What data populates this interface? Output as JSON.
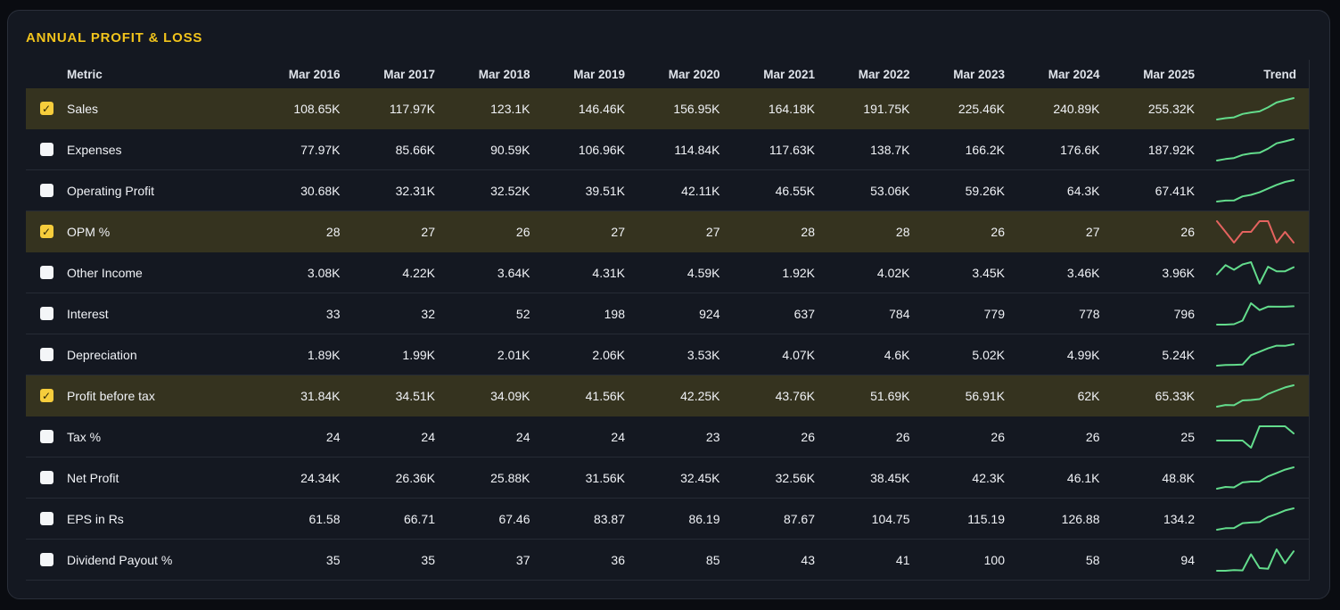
{
  "section": {
    "title": "ANNUAL PROFIT & LOSS"
  },
  "colors": {
    "accent_title": "#f2c41c",
    "row_highlight": "#35331f",
    "checkbox_checked": "#f6cd3c",
    "spark_green": "#63dc8c",
    "spark_red": "#e4635f"
  },
  "icons": {
    "checked_checkbox": "checkmark-icon",
    "trend_sparkline": "sparkline-chart-icon"
  },
  "table": {
    "metric_header": "Metric",
    "trend_header": "Trend",
    "year_headers": [
      "Mar 2016",
      "Mar 2017",
      "Mar 2018",
      "Mar 2019",
      "Mar 2020",
      "Mar 2021",
      "Mar 2022",
      "Mar 2023",
      "Mar 2024",
      "Mar 2025"
    ],
    "rows": [
      {
        "metric": "Sales",
        "checked": true,
        "values": [
          "108.65K",
          "117.97K",
          "123.1K",
          "146.46K",
          "156.95K",
          "164.18K",
          "191.75K",
          "225.46K",
          "240.89K",
          "255.32K"
        ],
        "trend_points": [
          108.65,
          117.97,
          123.1,
          146.46,
          156.95,
          164.18,
          191.75,
          225.46,
          240.89,
          255.32
        ],
        "trend_color": "#63dc8c"
      },
      {
        "metric": "Expenses",
        "checked": false,
        "values": [
          "77.97K",
          "85.66K",
          "90.59K",
          "106.96K",
          "114.84K",
          "117.63K",
          "138.7K",
          "166.2K",
          "176.6K",
          "187.92K"
        ],
        "trend_points": [
          77.97,
          85.66,
          90.59,
          106.96,
          114.84,
          117.63,
          138.7,
          166.2,
          176.6,
          187.92
        ],
        "trend_color": "#63dc8c"
      },
      {
        "metric": "Operating Profit",
        "checked": false,
        "values": [
          "30.68K",
          "32.31K",
          "32.52K",
          "39.51K",
          "42.11K",
          "46.55K",
          "53.06K",
          "59.26K",
          "64.3K",
          "67.41K"
        ],
        "trend_points": [
          30.68,
          32.31,
          32.52,
          39.51,
          42.11,
          46.55,
          53.06,
          59.26,
          64.3,
          67.41
        ],
        "trend_color": "#63dc8c"
      },
      {
        "metric": "OPM %",
        "checked": true,
        "values": [
          "28",
          "27",
          "26",
          "27",
          "27",
          "28",
          "28",
          "26",
          "27",
          "26"
        ],
        "trend_points": [
          28,
          27,
          26,
          27,
          27,
          28,
          28,
          26,
          27,
          26
        ],
        "trend_color": "#e4635f"
      },
      {
        "metric": "Other Income",
        "checked": false,
        "values": [
          "3.08K",
          "4.22K",
          "3.64K",
          "4.31K",
          "4.59K",
          "1.92K",
          "4.02K",
          "3.45K",
          "3.46K",
          "3.96K"
        ],
        "trend_points": [
          3.08,
          4.22,
          3.64,
          4.31,
          4.59,
          1.92,
          4.02,
          3.45,
          3.46,
          3.96
        ],
        "trend_color": "#63dc8c"
      },
      {
        "metric": "Interest",
        "checked": false,
        "values": [
          "33",
          "32",
          "52",
          "198",
          "924",
          "637",
          "784",
          "779",
          "778",
          "796"
        ],
        "trend_points": [
          33,
          32,
          52,
          198,
          924,
          637,
          784,
          779,
          778,
          796
        ],
        "trend_color": "#63dc8c"
      },
      {
        "metric": "Depreciation",
        "checked": false,
        "values": [
          "1.89K",
          "1.99K",
          "2.01K",
          "2.06K",
          "3.53K",
          "4.07K",
          "4.6K",
          "5.02K",
          "4.99K",
          "5.24K"
        ],
        "trend_points": [
          1.89,
          1.99,
          2.01,
          2.06,
          3.53,
          4.07,
          4.6,
          5.02,
          4.99,
          5.24
        ],
        "trend_color": "#63dc8c"
      },
      {
        "metric": "Profit before tax",
        "checked": true,
        "values": [
          "31.84K",
          "34.51K",
          "34.09K",
          "41.56K",
          "42.25K",
          "43.76K",
          "51.69K",
          "56.91K",
          "62K",
          "65.33K"
        ],
        "trend_points": [
          31.84,
          34.51,
          34.09,
          41.56,
          42.25,
          43.76,
          51.69,
          56.91,
          62,
          65.33
        ],
        "trend_color": "#63dc8c"
      },
      {
        "metric": "Tax %",
        "checked": false,
        "values": [
          "24",
          "24",
          "24",
          "24",
          "23",
          "26",
          "26",
          "26",
          "26",
          "25"
        ],
        "trend_points": [
          24,
          24,
          24,
          24,
          23,
          26,
          26,
          26,
          26,
          25
        ],
        "trend_color": "#63dc8c"
      },
      {
        "metric": "Net Profit",
        "checked": false,
        "values": [
          "24.34K",
          "26.36K",
          "25.88K",
          "31.56K",
          "32.45K",
          "32.56K",
          "38.45K",
          "42.3K",
          "46.1K",
          "48.8K"
        ],
        "trend_points": [
          24.34,
          26.36,
          25.88,
          31.56,
          32.45,
          32.56,
          38.45,
          42.3,
          46.1,
          48.8
        ],
        "trend_color": "#63dc8c"
      },
      {
        "metric": "EPS in Rs",
        "checked": false,
        "values": [
          "61.58",
          "66.71",
          "67.46",
          "83.87",
          "86.19",
          "87.67",
          "104.75",
          "115.19",
          "126.88",
          "134.2"
        ],
        "trend_points": [
          61.58,
          66.71,
          67.46,
          83.87,
          86.19,
          87.67,
          104.75,
          115.19,
          126.88,
          134.2
        ],
        "trend_color": "#63dc8c"
      },
      {
        "metric": "Dividend Payout %",
        "checked": false,
        "values": [
          "35",
          "35",
          "37",
          "36",
          "85",
          "43",
          "41",
          "100",
          "58",
          "94"
        ],
        "trend_points": [
          35,
          35,
          37,
          36,
          85,
          43,
          41,
          100,
          58,
          94
        ],
        "trend_color": "#63dc8c"
      }
    ]
  }
}
